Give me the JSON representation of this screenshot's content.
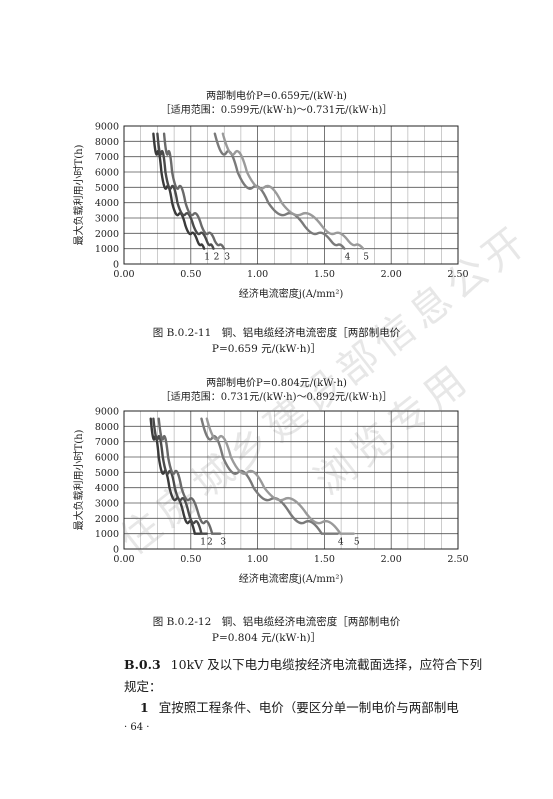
{
  "watermark": {
    "line1": "住房城乡建设部信息公开",
    "line2": "浏览专用"
  },
  "charts": [
    {
      "title_line1": "两部制电价P=0.659元/(kW·h)",
      "title_line2": "［适用范围：0.599元/(kW·h)～0.731元/(kW·h)］",
      "caption_line1": "图 B.0.2-11　铜、铝电缆经济电流密度［两部制电价",
      "caption_line2": "P=0.659 元/(kW·h)］",
      "chart_data": {
        "type": "line",
        "xlabel": "经济电流密度j(A/mm²)",
        "ylabel": "最大负载利用小时T(h)",
        "xlim": [
          0,
          2.5
        ],
        "ylim": [
          0,
          9000
        ],
        "xticks": [
          "0.00",
          "0.50",
          "1.00",
          "1.50",
          "2.00",
          "2.50"
        ],
        "yticks": [
          "0",
          "1000",
          "2000",
          "3000",
          "4000",
          "5000",
          "6000",
          "7000",
          "8000",
          "9000"
        ],
        "grid": true,
        "series": [
          {
            "name": "1",
            "x": [
              0.22,
              0.28,
              0.36,
              0.46,
              0.55,
              0.6
            ],
            "y": [
              8500,
              6000,
              4000,
              2500,
              1500,
              1000
            ]
          },
          {
            "name": "2",
            "x": [
              0.25,
              0.31,
              0.4,
              0.52,
              0.62,
              0.67
            ],
            "y": [
              8500,
              6000,
              4000,
              2500,
              1500,
              1000
            ]
          },
          {
            "name": "3",
            "x": [
              0.3,
              0.36,
              0.46,
              0.58,
              0.68,
              0.75
            ],
            "y": [
              8500,
              6000,
              4000,
              2500,
              1500,
              1000
            ]
          },
          {
            "name": "4",
            "x": [
              0.68,
              0.85,
              1.08,
              1.35,
              1.55,
              1.65
            ],
            "y": [
              8500,
              6000,
              4000,
              2500,
              1500,
              1000
            ]
          },
          {
            "name": "5",
            "x": [
              0.74,
              0.92,
              1.18,
              1.48,
              1.68,
              1.79
            ],
            "y": [
              8500,
              6000,
              4000,
              2500,
              1500,
              1000
            ]
          }
        ]
      }
    },
    {
      "title_line1": "两部制电价P=0.804元/(kW·h)",
      "title_line2": "［适用范围：0.731元/(kW·h)～0.892元/(kW·h)］",
      "caption_line1": "图 B.0.2-12　铜、铝电缆经济电流密度［两部制电价",
      "caption_line2": "P=0.804 元/(kW·h)］",
      "chart_data": {
        "type": "line",
        "xlabel": "经济电流密度j(A/mm²)",
        "ylabel": "最大负载利用小时T(h)",
        "xlim": [
          0,
          2.5
        ],
        "ylim": [
          0,
          9000
        ],
        "xticks": [
          "0.00",
          "0.50",
          "1.00",
          "1.50",
          "2.00",
          "2.50"
        ],
        "yticks": [
          "0",
          "1000",
          "2000",
          "3000",
          "4000",
          "5000",
          "6000",
          "7000",
          "8000",
          "9000"
        ],
        "grid": true,
        "series": [
          {
            "name": "1",
            "x": [
              0.2,
              0.26,
              0.34,
              0.44,
              0.53,
              0.57
            ],
            "y": [
              8500,
              6000,
              4000,
              2500,
              1000,
              1000
            ]
          },
          {
            "name": "2",
            "x": [
              0.22,
              0.29,
              0.38,
              0.48,
              0.58,
              0.62
            ],
            "y": [
              8500,
              6000,
              4000,
              2500,
              1000,
              1000
            ]
          },
          {
            "name": "3",
            "x": [
              0.26,
              0.33,
              0.43,
              0.55,
              0.66,
              0.72
            ],
            "y": [
              8500,
              6000,
              4000,
              2500,
              1000,
              1000
            ]
          },
          {
            "name": "4",
            "x": [
              0.58,
              0.74,
              0.97,
              1.23,
              1.48,
              1.6
            ],
            "y": [
              8500,
              6000,
              4000,
              2500,
              1000,
              1000
            ]
          },
          {
            "name": "5",
            "x": [
              0.62,
              0.8,
              1.05,
              1.35,
              1.62,
              1.72
            ],
            "y": [
              8500,
              6000,
              4000,
              2500,
              1000,
              1000
            ]
          }
        ]
      }
    }
  ],
  "clause": {
    "number": "B.0.3",
    "text_line1": "10kV 及以下电力电缆按经济电流截面选择，应符合下列",
    "text_line2": "规定：",
    "item_number": "1",
    "item_text": "宜按照工程条件、电价（要区分单一制电价与两部制电"
  },
  "page_number": "· 64 ·"
}
